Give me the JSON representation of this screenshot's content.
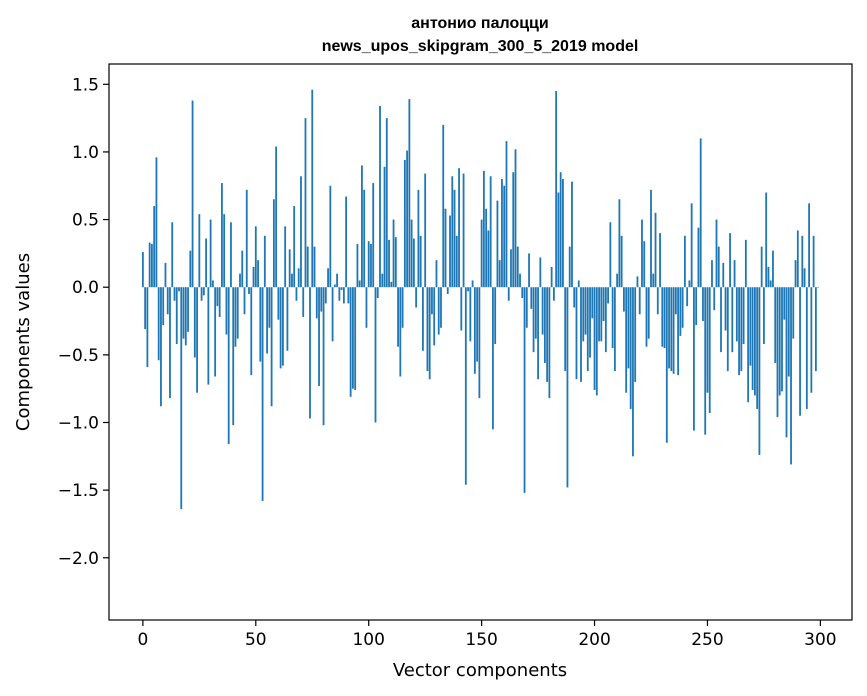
{
  "chart_data": {
    "type": "bar",
    "title": "антонио палоцци",
    "subtitle": "news_upos_skipgram_300_5_2019 model",
    "xlabel": "Vector components",
    "ylabel": "Components values",
    "xlim": [
      -15,
      314
    ],
    "ylim": [
      -2.46,
      1.65
    ],
    "xticks": [
      0,
      50,
      100,
      150,
      200,
      250,
      300
    ],
    "yticks": [
      -2.0,
      -1.5,
      -1.0,
      -0.5,
      0.0,
      0.5,
      1.0,
      1.5
    ],
    "ytick_labels": [
      "−2.0",
      "−1.5",
      "−1.0",
      "−0.5",
      "0.0",
      "0.5",
      "1.0",
      "1.5"
    ],
    "xtick_labels": [
      "0",
      "50",
      "100",
      "150",
      "200",
      "250",
      "300"
    ],
    "bar_color": "#1f77b4",
    "grid": false,
    "legend": "none",
    "x": "component index 0..299 (one bar per index)",
    "values": [
      0.26,
      -0.31,
      -0.59,
      0.33,
      0.32,
      0.6,
      0.96,
      -0.54,
      -0.88,
      -0.28,
      0.18,
      -0.2,
      -0.82,
      0.48,
      -0.1,
      -0.42,
      -0.03,
      -1.64,
      -0.38,
      -0.43,
      -0.33,
      0.27,
      1.38,
      -0.52,
      -0.78,
      0.54,
      -0.1,
      -0.06,
      0.36,
      -0.72,
      0.5,
      0.05,
      -0.66,
      -0.14,
      -0.22,
      0.77,
      0.54,
      -0.35,
      -1.16,
      0.48,
      -1.02,
      -0.44,
      -0.38,
      0.1,
      0.27,
      -0.2,
      0.72,
      -0.05,
      -0.65,
      0.15,
      0.45,
      0.2,
      -0.55,
      -1.58,
      0.38,
      -0.49,
      -0.3,
      -0.88,
      0.65,
      1.04,
      -0.24,
      -0.6,
      -0.58,
      0.45,
      -0.47,
      0.28,
      0.1,
      0.6,
      -0.1,
      0.14,
      0.82,
      -0.22,
      1.25,
      0.3,
      -0.97,
      1.46,
      0.3,
      -0.23,
      -0.73,
      -0.18,
      -1.02,
      -0.12,
      0.14,
      0.75,
      -0.4,
      0.02,
      0.1,
      -0.1,
      -0.02,
      -0.12,
      0.67,
      -0.12,
      -0.81,
      -0.75,
      -0.76,
      0.32,
      0.05,
      0.9,
      0.72,
      -0.3,
      0.34,
      0.32,
      0.77,
      -1.0,
      -0.08,
      1.34,
      0.1,
      0.89,
      1.25,
      0.35,
      0.04,
      0.5,
      0.37,
      -0.44,
      -0.66,
      -0.3,
      0.94,
      1.01,
      1.39,
      0.5,
      0.36,
      -0.15,
      0.72,
      0.38,
      -0.47,
      0.84,
      -0.62,
      -0.68,
      -0.2,
      -0.43,
      0.2,
      -0.35,
      -0.3,
      1.2,
      0.58,
      -0.05,
      0.53,
      0.82,
      0.72,
      0.38,
      0.88,
      -0.32,
      0.84,
      -1.46,
      -0.03,
      -0.4,
      0.05,
      -0.64,
      -0.55,
      -0.82,
      0.5,
      0.86,
      0.58,
      0.42,
      0.82,
      -1.05,
      -0.42,
      0.64,
      0.2,
      0.8,
      0.75,
      1.08,
      -0.1,
      0.28,
      0.85,
      1.02,
      0.3,
      0.1,
      -0.08,
      -1.52,
      -0.3,
      0.25,
      -0.16,
      -0.48,
      -0.38,
      -0.68,
      0.22,
      -0.35,
      -0.56,
      -0.7,
      -0.82,
      0.15,
      -0.1,
      1.45,
      0.7,
      0.85,
      0.8,
      -0.62,
      -1.48,
      0.3,
      0.78,
      -0.15,
      -0.68,
      0.05,
      -0.7,
      -0.4,
      -0.35,
      -0.62,
      -0.52,
      -0.23,
      -0.76,
      -0.8,
      -0.4,
      -0.4,
      -0.25,
      -0.48,
      -0.12,
      0.48,
      -0.45,
      -0.62,
      0.1,
      0.65,
      0.38,
      -0.18,
      -0.78,
      -0.6,
      -0.9,
      -1.25,
      -0.7,
      0.08,
      -0.2,
      0.5,
      0.34,
      -0.44,
      -0.38,
      0.72,
      0.1,
      0.55,
      -0.2,
      0.4,
      -0.44,
      -0.45,
      -1.15,
      -0.6,
      -0.62,
      -0.64,
      -0.2,
      -0.65,
      -0.36,
      -0.3,
      0.38,
      -0.14,
      0.05,
      0.62,
      -1.06,
      -0.28,
      0.44,
      1.1,
      -0.25,
      -1.09,
      -0.78,
      -0.93,
      0.2,
      -0.17,
      0.5,
      0.3,
      -0.48,
      0.18,
      -0.32,
      -0.62,
      0.4,
      -0.48,
      0.2,
      -0.4,
      -0.65,
      -0.62,
      -0.42,
      0.35,
      -0.85,
      -0.58,
      -0.76,
      -0.8,
      -0.9,
      -1.24,
      0.3,
      -0.42,
      0.7,
      0.15,
      0.05,
      0.27,
      -0.56,
      -0.96,
      -0.8,
      -0.77,
      -0.24,
      -1.11,
      -0.66,
      -1.31,
      -0.38,
      0.2,
      0.42,
      -0.95,
      0.38,
      0.14,
      -0.9,
      0.62,
      -0.78,
      0.38,
      -0.62,
      0.0
    ]
  }
}
